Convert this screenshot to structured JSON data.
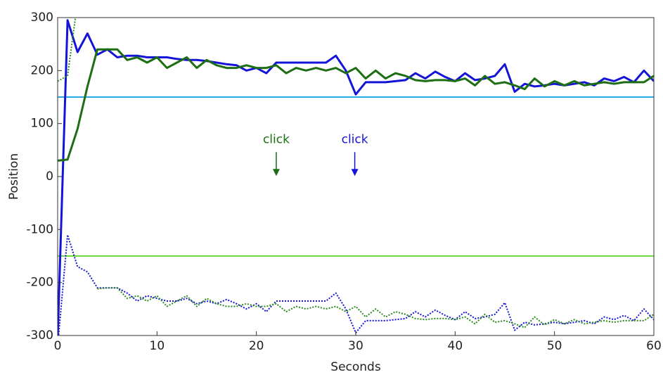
{
  "chart_data": {
    "type": "line",
    "xlabel": "Seconds",
    "ylabel": "Position",
    "xlim": [
      0,
      60
    ],
    "xticks": [
      0,
      10,
      20,
      30,
      40,
      50,
      60
    ],
    "ylim": [
      -300,
      300
    ],
    "yticks": [
      -300,
      -200,
      -100,
      0,
      100,
      200,
      300
    ],
    "x": [
      0,
      1,
      2,
      3,
      4,
      5,
      6,
      7,
      8,
      9,
      10,
      11,
      12,
      13,
      14,
      15,
      16,
      17,
      18,
      19,
      20,
      21,
      22,
      23,
      24,
      25,
      26,
      27,
      28,
      29,
      30,
      31,
      32,
      33,
      34,
      35,
      36,
      37,
      38,
      39,
      40,
      41,
      42,
      43,
      44,
      45,
      46,
      47,
      48,
      49,
      50,
      51,
      52,
      53,
      54,
      55,
      56,
      57,
      58,
      59,
      60
    ],
    "series": [
      {
        "color": "#1414d8",
        "dash": false,
        "values": [
          -305,
          295,
          235,
          270,
          230,
          240,
          225,
          228,
          228,
          225,
          225,
          225,
          222,
          220,
          220,
          218,
          215,
          212,
          210,
          200,
          205,
          195,
          215,
          215,
          215,
          215,
          215,
          215,
          228,
          200,
          155,
          178,
          178,
          178,
          180,
          182,
          195,
          185,
          198,
          188,
          180,
          195,
          182,
          185,
          190,
          212,
          160,
          175,
          170,
          172,
          175,
          172,
          175,
          178,
          172,
          185,
          180,
          188,
          178,
          200,
          180
        ]
      },
      {
        "color": "#1d6e12",
        "dash": false,
        "values": [
          30,
          32,
          90,
          170,
          240,
          240,
          240,
          220,
          225,
          215,
          225,
          205,
          215,
          225,
          205,
          220,
          210,
          205,
          205,
          210,
          205,
          205,
          210,
          195,
          205,
          200,
          205,
          200,
          205,
          195,
          205,
          185,
          200,
          185,
          195,
          190,
          182,
          180,
          182,
          182,
          180,
          185,
          172,
          190,
          175,
          178,
          172,
          165,
          185,
          170,
          180,
          172,
          180,
          172,
          175,
          178,
          175,
          178,
          178,
          178,
          190
        ]
      },
      {
        "color": "#1414d8",
        "dash": true,
        "values": [
          -320,
          -110,
          -170,
          -180,
          -210,
          -210,
          -210,
          -220,
          -235,
          -225,
          -230,
          -235,
          -235,
          -230,
          -240,
          -235,
          -240,
          -232,
          -240,
          -250,
          -240,
          -255,
          -235,
          -235,
          -235,
          -235,
          -235,
          -235,
          -220,
          -250,
          -295,
          -272,
          -272,
          -272,
          -270,
          -268,
          -255,
          -265,
          -252,
          -262,
          -270,
          -255,
          -268,
          -265,
          -260,
          -238,
          -290,
          -275,
          -280,
          -278,
          -275,
          -278,
          -275,
          -272,
          -278,
          -265,
          -270,
          -262,
          -272,
          -250,
          -270
        ]
      },
      {
        "color": "#2e8a1e",
        "dash": true,
        "values": [
          180,
          190,
          330,
          null,
          -212,
          -210,
          -210,
          -230,
          -225,
          -235,
          -225,
          -245,
          -235,
          -225,
          -245,
          -230,
          -240,
          -245,
          -245,
          -240,
          -245,
          -245,
          -240,
          -255,
          -245,
          -250,
          -245,
          -250,
          -245,
          -255,
          -245,
          -265,
          -250,
          -265,
          -255,
          -260,
          -268,
          -270,
          -268,
          -268,
          -270,
          -265,
          -278,
          -260,
          -275,
          -272,
          -278,
          -285,
          -265,
          -280,
          -270,
          -278,
          -270,
          -278,
          -275,
          -272,
          -275,
          -272,
          -272,
          -272,
          -260
        ]
      }
    ],
    "hlines": [
      {
        "value": 150,
        "color": "#2aa8e0"
      },
      {
        "value": -150,
        "color": "#6fdc3a"
      }
    ],
    "annotations": [
      {
        "text": "click",
        "x": 22,
        "y": 70,
        "color": "#1d6e12"
      },
      {
        "text": "click",
        "x": 29.9,
        "y": 70,
        "color": "#1414d8"
      }
    ]
  }
}
